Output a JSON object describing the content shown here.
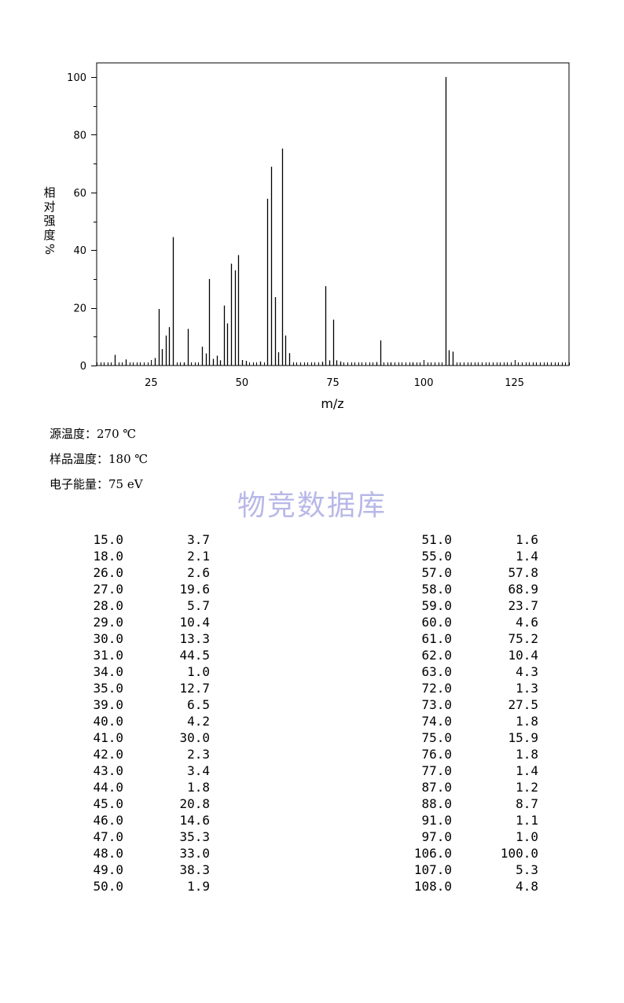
{
  "chart_data": {
    "type": "bar",
    "xlabel": "m/z",
    "ylabel_chars": [
      "相",
      "对",
      "强",
      "度",
      "%"
    ],
    "xlim": [
      10,
      140
    ],
    "ylim": [
      0,
      105
    ],
    "xticks": [
      25,
      50,
      75,
      100,
      125
    ],
    "yticks": [
      0,
      20,
      40,
      60,
      80,
      100
    ],
    "grid": false,
    "x": [
      15,
      18,
      26,
      27,
      28,
      29,
      30,
      31,
      34,
      35,
      39,
      40,
      41,
      42,
      43,
      44,
      45,
      46,
      47,
      48,
      49,
      50,
      51,
      55,
      57,
      58,
      59,
      60,
      61,
      62,
      63,
      72,
      73,
      74,
      75,
      76,
      77,
      87,
      88,
      91,
      97,
      106,
      107,
      108
    ],
    "values": [
      3.7,
      2.1,
      2.6,
      19.6,
      5.7,
      10.4,
      13.3,
      44.5,
      1.0,
      12.7,
      6.5,
      4.2,
      30.0,
      2.3,
      3.4,
      1.8,
      20.8,
      14.6,
      35.3,
      33.0,
      38.3,
      1.9,
      1.6,
      1.4,
      57.8,
      68.9,
      23.7,
      4.6,
      75.2,
      10.4,
      4.3,
      1.3,
      27.5,
      1.8,
      15.9,
      1.8,
      1.4,
      1.2,
      8.7,
      1.1,
      1.0,
      100.0,
      5.3,
      4.8
    ],
    "bar_color": "#000000"
  },
  "conditions": [
    {
      "label": "源温度：",
      "value": "270 ℃"
    },
    {
      "label": "样品温度：",
      "value": "180 ℃"
    },
    {
      "label": "电子能量：",
      "value": "75 eV"
    }
  ],
  "watermark": "物竞数据库",
  "watermark_color": "#b8b8e8",
  "peak_table": {
    "left": [
      [
        "15.0",
        "3.7"
      ],
      [
        "18.0",
        "2.1"
      ],
      [
        "26.0",
        "2.6"
      ],
      [
        "27.0",
        "19.6"
      ],
      [
        "28.0",
        "5.7"
      ],
      [
        "29.0",
        "10.4"
      ],
      [
        "30.0",
        "13.3"
      ],
      [
        "31.0",
        "44.5"
      ],
      [
        "34.0",
        "1.0"
      ],
      [
        "35.0",
        "12.7"
      ],
      [
        "39.0",
        "6.5"
      ],
      [
        "40.0",
        "4.2"
      ],
      [
        "41.0",
        "30.0"
      ],
      [
        "42.0",
        "2.3"
      ],
      [
        "43.0",
        "3.4"
      ],
      [
        "44.0",
        "1.8"
      ],
      [
        "45.0",
        "20.8"
      ],
      [
        "46.0",
        "14.6"
      ],
      [
        "47.0",
        "35.3"
      ],
      [
        "48.0",
        "33.0"
      ],
      [
        "49.0",
        "38.3"
      ],
      [
        "50.0",
        "1.9"
      ]
    ],
    "right": [
      [
        "51.0",
        "1.6"
      ],
      [
        "55.0",
        "1.4"
      ],
      [
        "57.0",
        "57.8"
      ],
      [
        "58.0",
        "68.9"
      ],
      [
        "59.0",
        "23.7"
      ],
      [
        "60.0",
        "4.6"
      ],
      [
        "61.0",
        "75.2"
      ],
      [
        "62.0",
        "10.4"
      ],
      [
        "63.0",
        "4.3"
      ],
      [
        "72.0",
        "1.3"
      ],
      [
        "73.0",
        "27.5"
      ],
      [
        "74.0",
        "1.8"
      ],
      [
        "75.0",
        "15.9"
      ],
      [
        "76.0",
        "1.8"
      ],
      [
        "77.0",
        "1.4"
      ],
      [
        "87.0",
        "1.2"
      ],
      [
        "88.0",
        "8.7"
      ],
      [
        "91.0",
        "1.1"
      ],
      [
        "97.0",
        "1.0"
      ],
      [
        "106.0",
        "100.0"
      ],
      [
        "107.0",
        "5.3"
      ],
      [
        "108.0",
        "4.8"
      ]
    ]
  }
}
